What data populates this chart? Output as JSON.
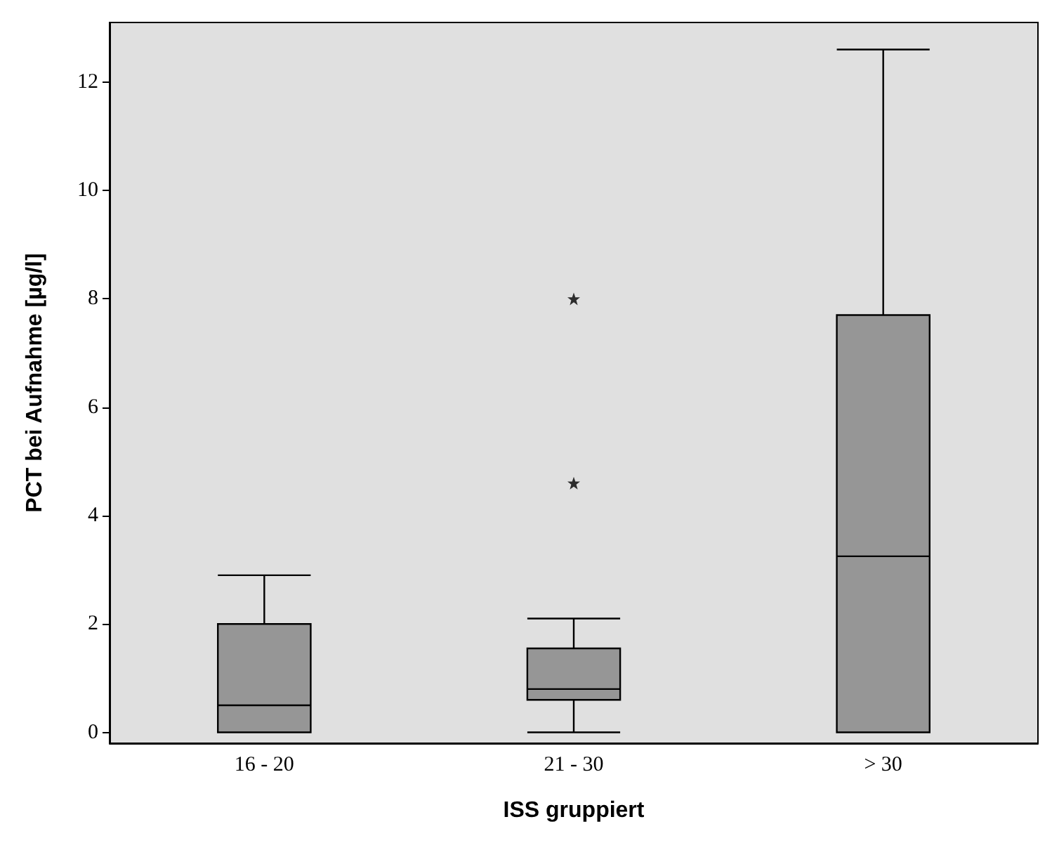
{
  "chart_data": {
    "type": "box",
    "xlabel": "ISS gruppiert",
    "ylabel": "PCT bei Aufnahme [µg/l]",
    "categories": [
      "16 - 20",
      "21 - 30",
      "> 30"
    ],
    "series": [
      {
        "color": "#969696",
        "boxes": [
          {
            "low": 0,
            "q1": 0,
            "median": 0.5,
            "q3": 2.0,
            "high": 2.9
          },
          {
            "low": 0,
            "q1": 0.6,
            "median": 0.8,
            "q3": 1.55,
            "high": 2.1,
            "outliers": [
              4.6,
              8.0
            ]
          },
          {
            "low": 0,
            "q1": 0,
            "median": 3.25,
            "q3": 7.7,
            "high": 12.6
          }
        ]
      }
    ],
    "ylim": [
      -0.2,
      13.1
    ],
    "yticks": [
      0,
      2,
      4,
      6,
      8,
      10,
      12
    ]
  }
}
